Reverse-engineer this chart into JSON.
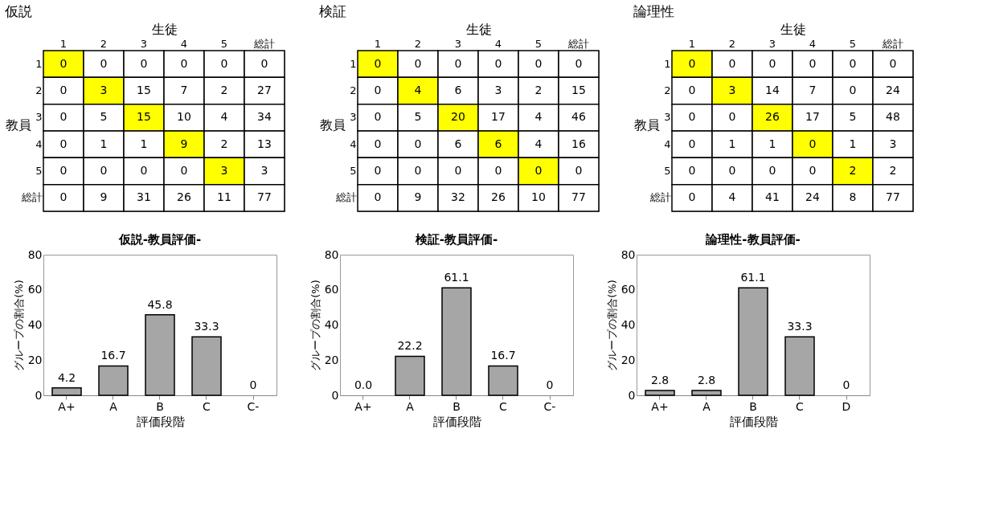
{
  "chart_data": [
    {
      "type": "heatmap",
      "data_labels": true,
      "title": "仮説",
      "xlabel": "生徒",
      "ylabel": "教員",
      "categories": [
        "1",
        "2",
        "3",
        "4",
        "5",
        "総計"
      ],
      "y_categories": [
        "1",
        "2",
        "3",
        "4",
        "5",
        "総計"
      ],
      "cells": [
        [
          0,
          0,
          0,
          0,
          0,
          0
        ],
        [
          0,
          3,
          15,
          7,
          2,
          27
        ],
        [
          0,
          5,
          15,
          10,
          4,
          34
        ],
        [
          0,
          1,
          1,
          9,
          2,
          13
        ],
        [
          0,
          0,
          0,
          0,
          3,
          3
        ],
        [
          0,
          9,
          31,
          26,
          11,
          77
        ]
      ],
      "colors": [
        [
          "#ffff00",
          "#ffffff",
          "#ffffff",
          "#ffffff",
          "#ffffff",
          "#ffffff"
        ],
        [
          "#ffffff",
          "#ffff00",
          "#ffffff",
          "#ffffff",
          "#ffffff",
          "#ffffff"
        ],
        [
          "#ffffff",
          "#ffffff",
          "#ffff00",
          "#ffffff",
          "#ffffff",
          "#ffffff"
        ],
        [
          "#ffffff",
          "#ffffff",
          "#ffffff",
          "#ffff00",
          "#ffffff",
          "#ffffff"
        ],
        [
          "#ffffff",
          "#ffffff",
          "#ffffff",
          "#ffffff",
          "#ffff00",
          "#ffffff"
        ],
        [
          "#ffffff",
          "#ffffff",
          "#ffffff",
          "#ffffff",
          "#ffffff",
          "#ffffff"
        ]
      ]
    },
    {
      "type": "heatmap",
      "data_labels": true,
      "title": "検証",
      "xlabel": "生徒",
      "ylabel": "教員",
      "categories": [
        "1",
        "2",
        "3",
        "4",
        "5",
        "総計"
      ],
      "y_categories": [
        "1",
        "2",
        "3",
        "4",
        "5",
        "総計"
      ],
      "cells": [
        [
          0,
          0,
          0,
          0,
          0,
          0
        ],
        [
          0,
          4,
          6,
          3,
          2,
          15
        ],
        [
          0,
          5,
          20,
          17,
          4,
          46
        ],
        [
          0,
          0,
          6,
          6,
          4,
          16
        ],
        [
          0,
          0,
          0,
          0,
          0,
          0
        ],
        [
          0,
          9,
          32,
          26,
          10,
          77
        ]
      ],
      "colors": [
        [
          "#ffff00",
          "#ffffff",
          "#ffffff",
          "#ffffff",
          "#ffffff",
          "#ffffff"
        ],
        [
          "#ffffff",
          "#ffff00",
          "#ffffff",
          "#ffffff",
          "#ffffff",
          "#ffffff"
        ],
        [
          "#ffffff",
          "#ffffff",
          "#ffff00",
          "#ffffff",
          "#ffffff",
          "#ffffff"
        ],
        [
          "#ffffff",
          "#ffffff",
          "#ffffff",
          "#ffff00",
          "#ffffff",
          "#ffffff"
        ],
        [
          "#ffffff",
          "#ffffff",
          "#ffffff",
          "#ffffff",
          "#ffff00",
          "#ffffff"
        ],
        [
          "#ffffff",
          "#ffffff",
          "#ffffff",
          "#ffffff",
          "#ffffff",
          "#ffffff"
        ]
      ]
    },
    {
      "type": "heatmap",
      "data_labels": true,
      "title": "論理性",
      "xlabel": "生徒",
      "ylabel": "教員",
      "categories": [
        "1",
        "2",
        "3",
        "4",
        "5",
        "総計"
      ],
      "y_categories": [
        "1",
        "2",
        "3",
        "4",
        "5",
        "総計"
      ],
      "cells": [
        [
          0,
          0,
          0,
          0,
          0,
          0
        ],
        [
          0,
          3,
          14,
          7,
          0,
          24
        ],
        [
          0,
          0,
          26,
          17,
          5,
          48
        ],
        [
          0,
          1,
          1,
          0,
          1,
          3
        ],
        [
          0,
          0,
          0,
          0,
          2,
          2
        ],
        [
          0,
          4,
          41,
          24,
          8,
          77
        ]
      ],
      "colors": [
        [
          "#ffff00",
          "#ffffff",
          "#ffffff",
          "#ffffff",
          "#ffffff",
          "#ffffff"
        ],
        [
          "#ffffff",
          "#ffff00",
          "#ffffff",
          "#ffffff",
          "#ffffff",
          "#ffffff"
        ],
        [
          "#ffffff",
          "#ffffff",
          "#ffff00",
          "#ffffff",
          "#ffffff",
          "#ffffff"
        ],
        [
          "#ffffff",
          "#ffffff",
          "#ffffff",
          "#ffff00",
          "#ffffff",
          "#ffffff"
        ],
        [
          "#ffffff",
          "#ffffff",
          "#ffffff",
          "#ffffff",
          "#ffff00",
          "#ffffff"
        ],
        [
          "#ffffff",
          "#ffffff",
          "#ffffff",
          "#ffffff",
          "#ffffff",
          "#ffffff"
        ]
      ]
    },
    {
      "type": "bar",
      "title": "仮説-教員評価-",
      "xlabel": "評価段階",
      "ylabel": "グループの割合(%)",
      "categories": [
        "A+",
        "A",
        "B",
        "C",
        "C-"
      ],
      "values": [
        4.2,
        16.7,
        45.8,
        33.3,
        0
      ],
      "value_labels": [
        "4.2",
        "16.7",
        "45.8",
        "33.3",
        "0"
      ],
      "color": "#a6a6a6",
      "ylim": [
        0,
        80
      ],
      "yticks": [
        0,
        20,
        40,
        60,
        80
      ],
      "grid": false,
      "legend": false
    },
    {
      "type": "bar",
      "title": "検証-教員評価-",
      "xlabel": "評価段階",
      "ylabel": "グループの割合(%)",
      "categories": [
        "A+",
        "A",
        "B",
        "C",
        "C-"
      ],
      "values": [
        0.0,
        22.2,
        61.1,
        16.7,
        0
      ],
      "value_labels": [
        "0.0",
        "22.2",
        "61.1",
        "16.7",
        "0"
      ],
      "color": "#a6a6a6",
      "ylim": [
        0,
        80
      ],
      "yticks": [
        0,
        20,
        40,
        60,
        80
      ],
      "grid": false,
      "legend": false
    },
    {
      "type": "bar",
      "title": "論理性-教員評価-",
      "xlabel": "評価段階",
      "ylabel": "グループの割合(%)",
      "categories": [
        "A+",
        "A",
        "B",
        "C",
        "D"
      ],
      "values": [
        2.8,
        2.8,
        61.1,
        33.3,
        0
      ],
      "value_labels": [
        "2.8",
        "2.8",
        "61.1",
        "33.3",
        "0"
      ],
      "color": "#a6a6a6",
      "ylim": [
        0,
        80
      ],
      "yticks": [
        0,
        20,
        40,
        60,
        80
      ],
      "grid": false,
      "legend": false
    }
  ]
}
